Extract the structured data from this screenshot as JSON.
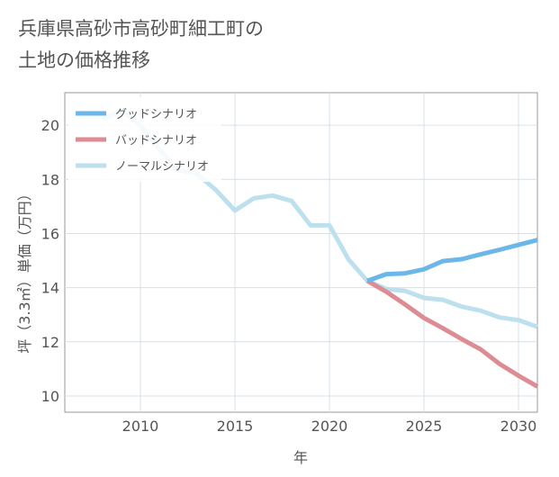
{
  "title_lines": [
    "兵庫県高砂市高砂町細工町の",
    "土地の価格推移"
  ],
  "chart_data": {
    "type": "line",
    "title": "兵庫県高砂市高砂町細工町の土地の価格推移",
    "xlabel": "年",
    "ylabel": "坪（3.3㎡）単価（万円）",
    "xlim": [
      2006,
      2031
    ],
    "ylim": [
      9.4,
      21.2
    ],
    "x_ticks": [
      2010,
      2015,
      2020,
      2025,
      2030
    ],
    "y_ticks": [
      10,
      12,
      14,
      16,
      18,
      20
    ],
    "grid": true,
    "legend_position": "top-left",
    "series": [
      {
        "name": "グッドシナリオ",
        "color": "#6cb7ea",
        "x": [
          2022,
          2023,
          2024,
          2025,
          2026,
          2027,
          2028,
          2029,
          2030,
          2031
        ],
        "y": [
          14.25,
          14.5,
          14.53,
          14.68,
          14.98,
          15.05,
          15.23,
          15.4,
          15.58,
          15.76
        ]
      },
      {
        "name": "バッドシナリオ",
        "color": "#dc8c92",
        "x": [
          2022,
          2023,
          2024,
          2025,
          2026,
          2027,
          2028,
          2029,
          2030,
          2031
        ],
        "y": [
          14.25,
          13.85,
          13.38,
          12.88,
          12.5,
          12.1,
          11.72,
          11.18,
          10.75,
          10.35
        ]
      },
      {
        "name": "ノーマルシナリオ",
        "color": "#bde0ee",
        "x": [
          2008,
          2009,
          2010,
          2011,
          2012,
          2013,
          2014,
          2015,
          2016,
          2017,
          2018,
          2019,
          2020,
          2021,
          2022,
          2023,
          2024,
          2025,
          2026,
          2027,
          2028,
          2029,
          2030,
          2031
        ],
        "y": [
          20.2,
          20.55,
          20.0,
          19.1,
          18.35,
          18.2,
          17.6,
          16.85,
          17.3,
          17.4,
          17.2,
          16.3,
          16.3,
          15.05,
          14.25,
          13.95,
          13.88,
          13.62,
          13.55,
          13.3,
          13.15,
          12.9,
          12.8,
          12.55
        ]
      }
    ]
  }
}
